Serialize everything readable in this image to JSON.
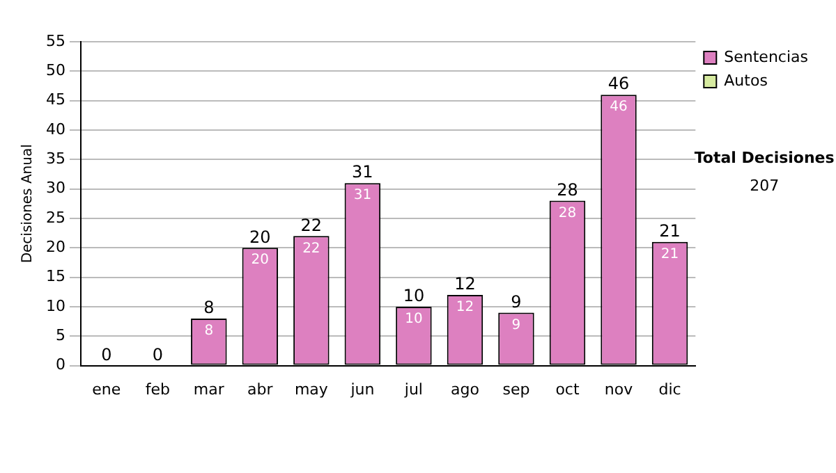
{
  "chart_data": {
    "type": "bar",
    "stacked": true,
    "ylabel": "Decisiones Anual",
    "categories": [
      "ene",
      "feb",
      "mar",
      "abr",
      "may",
      "jun",
      "jul",
      "ago",
      "sep",
      "oct",
      "nov",
      "dic"
    ],
    "series": [
      {
        "name": "Sentencias",
        "color": "#dd80c0",
        "values": [
          0,
          0,
          8,
          20,
          22,
          31,
          10,
          12,
          9,
          28,
          46,
          21
        ],
        "value_labels": [
          null,
          null,
          "8",
          "20",
          "22",
          "31",
          "10",
          "12",
          "9",
          "28",
          "46",
          "21"
        ]
      },
      {
        "name": "Autos",
        "color": "#d6eaa0",
        "values": [
          0,
          0,
          0,
          0,
          0,
          0,
          0,
          0,
          0,
          0,
          0,
          0
        ]
      }
    ],
    "totals": [
      "0",
      "0",
      "8",
      "20",
      "22",
      "31",
      "10",
      "12",
      "9",
      "28",
      "46",
      "21"
    ],
    "ylim": [
      0,
      55
    ],
    "yticks": [
      0,
      5,
      10,
      15,
      20,
      25,
      30,
      35,
      40,
      45,
      50,
      55
    ],
    "grid": "y",
    "legend": "right",
    "annotations": [
      "Total Decisiones",
      "207"
    ]
  }
}
